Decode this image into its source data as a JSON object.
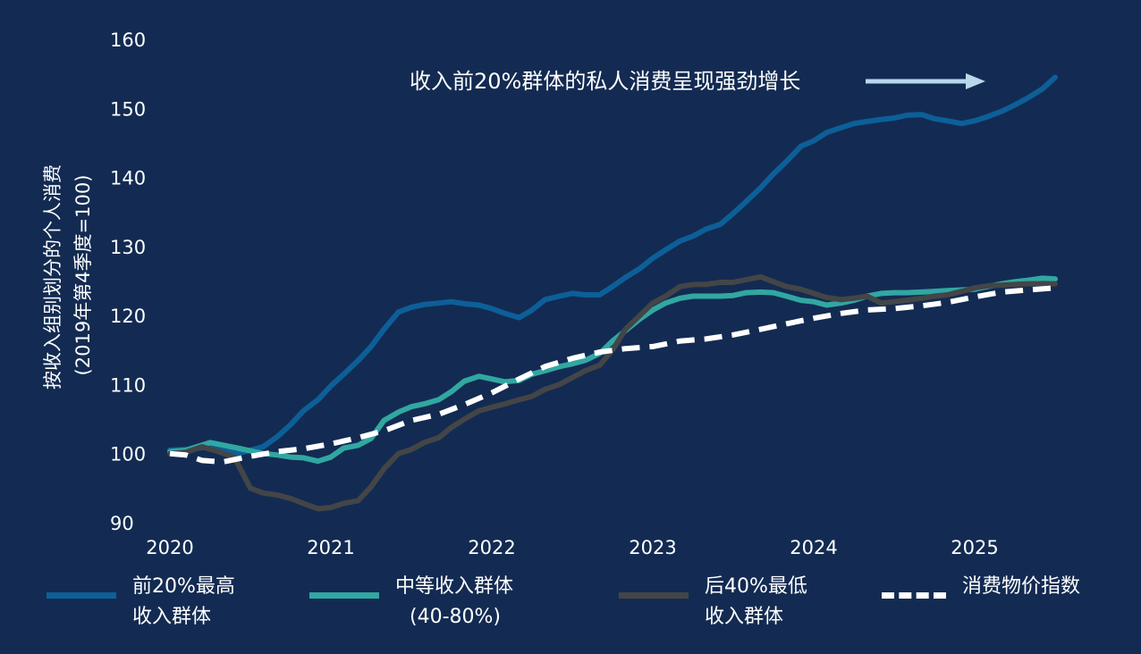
{
  "chart_data": {
    "type": "line",
    "ylabel_line1": "按收入组别划分的个人消费",
    "ylabel_line2": "(2019年第4季度=100)",
    "ylim": [
      90,
      160
    ],
    "yticks": [
      "90",
      "100",
      "110",
      "120",
      "130",
      "140",
      "150",
      "160"
    ],
    "xlim": [
      2020,
      2025.6
    ],
    "xticks": [
      "2020",
      "2021",
      "2022",
      "2023",
      "2024",
      "2025"
    ],
    "annotation": "收入前20%群体的私人消费呈现强劲增长",
    "colors": {
      "top20": "#0d5f98",
      "middle": "#31a7a2",
      "bottom40": "#434547",
      "cpi": "#ffffff",
      "arrow": "#b9d7ea"
    },
    "series": [
      {
        "key": "top20",
        "name_line1": "前20%最高",
        "name_line2": "收入群体",
        "x": [
          2020.0,
          2020.1,
          2020.25,
          2020.42,
          2020.58,
          2020.67,
          2020.75,
          2020.83,
          2020.92,
          2021.0,
          2021.08,
          2021.17,
          2021.25,
          2021.33,
          2021.42,
          2021.5,
          2021.58,
          2021.67,
          2021.75,
          2021.83,
          2021.92,
          2022.0,
          2022.08,
          2022.17,
          2022.25,
          2022.33,
          2022.42,
          2022.5,
          2022.58,
          2022.67,
          2022.75,
          2022.83,
          2022.92,
          2023.0,
          2023.08,
          2023.17,
          2023.25,
          2023.33,
          2023.42,
          2023.5,
          2023.58,
          2023.67,
          2023.75,
          2023.83,
          2023.92,
          2024.0,
          2024.08,
          2024.17,
          2024.25,
          2024.33,
          2024.42,
          2024.5,
          2024.58,
          2024.67,
          2024.75,
          2024.83,
          2024.92,
          2025.0,
          2025.08,
          2025.17,
          2025.25,
          2025.33,
          2025.42,
          2025.5
        ],
        "values": [
          100.5,
          100.6,
          101.0,
          100.0,
          101.0,
          102.5,
          104.2,
          106.2,
          107.8,
          109.8,
          111.5,
          113.5,
          115.5,
          118.0,
          120.5,
          121.2,
          121.6,
          121.8,
          122.0,
          121.7,
          121.5,
          121.0,
          120.3,
          119.7,
          120.8,
          122.3,
          122.8,
          123.2,
          123.0,
          123.0,
          124.2,
          125.5,
          126.8,
          128.3,
          129.5,
          130.8,
          131.5,
          132.5,
          133.2,
          134.8,
          136.5,
          138.5,
          140.5,
          142.3,
          144.5,
          145.3,
          146.5,
          147.2,
          147.8,
          148.1,
          148.4,
          148.6,
          149.0,
          149.1,
          148.5,
          148.2,
          147.8,
          148.2,
          148.8,
          149.6,
          150.5,
          151.5,
          152.8,
          154.5
        ]
      },
      {
        "key": "middle",
        "name_line1": "中等收入群体",
        "name_line2": "(40-80%)",
        "x": [
          2020.0,
          2020.1,
          2020.25,
          2020.42,
          2020.58,
          2020.67,
          2020.75,
          2020.83,
          2020.92,
          2021.0,
          2021.08,
          2021.17,
          2021.25,
          2021.33,
          2021.42,
          2021.5,
          2021.58,
          2021.67,
          2021.75,
          2021.83,
          2021.92,
          2022.0,
          2022.08,
          2022.17,
          2022.25,
          2022.33,
          2022.42,
          2022.5,
          2022.58,
          2022.67,
          2022.75,
          2022.83,
          2022.92,
          2023.0,
          2023.08,
          2023.17,
          2023.25,
          2023.33,
          2023.42,
          2023.5,
          2023.58,
          2023.67,
          2023.75,
          2023.83,
          2023.92,
          2024.0,
          2024.08,
          2024.17,
          2024.25,
          2024.33,
          2024.42,
          2024.5,
          2024.58,
          2024.67,
          2024.75,
          2024.83,
          2024.92,
          2025.0,
          2025.08,
          2025.17,
          2025.25,
          2025.33,
          2025.42,
          2025.5
        ],
        "values": [
          100.3,
          100.5,
          101.6,
          100.8,
          100.0,
          99.8,
          99.5,
          99.4,
          98.9,
          99.5,
          100.8,
          101.2,
          102.2,
          104.8,
          106.0,
          106.8,
          107.2,
          107.8,
          109.0,
          110.5,
          111.2,
          110.8,
          110.4,
          110.6,
          111.5,
          112.0,
          112.6,
          113.0,
          113.5,
          114.5,
          116.3,
          117.8,
          119.5,
          120.8,
          121.8,
          122.5,
          122.8,
          122.8,
          122.8,
          122.9,
          123.3,
          123.4,
          123.3,
          122.8,
          122.2,
          122.0,
          121.5,
          121.8,
          122.2,
          122.8,
          123.2,
          123.3,
          123.3,
          123.4,
          123.5,
          123.6,
          123.7,
          123.8,
          124.2,
          124.6,
          124.9,
          125.1,
          125.4,
          125.3
        ]
      },
      {
        "key": "bottom40",
        "name_line1": "后40%最低",
        "name_line2": "收入群体",
        "x": [
          2020.0,
          2020.1,
          2020.2,
          2020.3,
          2020.4,
          2020.5,
          2020.58,
          2020.67,
          2020.75,
          2020.83,
          2020.92,
          2021.0,
          2021.08,
          2021.17,
          2021.25,
          2021.33,
          2021.42,
          2021.5,
          2021.58,
          2021.67,
          2021.75,
          2021.83,
          2021.92,
          2022.0,
          2022.08,
          2022.17,
          2022.25,
          2022.33,
          2022.42,
          2022.5,
          2022.58,
          2022.67,
          2022.75,
          2022.83,
          2022.92,
          2023.0,
          2023.08,
          2023.17,
          2023.25,
          2023.33,
          2023.42,
          2023.5,
          2023.58,
          2023.67,
          2023.75,
          2023.83,
          2023.92,
          2024.0,
          2024.08,
          2024.17,
          2024.25,
          2024.33,
          2024.42,
          2024.5,
          2024.58,
          2024.67,
          2024.75,
          2024.83,
          2024.92,
          2025.0,
          2025.08,
          2025.17,
          2025.25,
          2025.33,
          2025.42,
          2025.5
        ],
        "values": [
          100.0,
          100.2,
          101.0,
          100.3,
          99.5,
          95.0,
          94.3,
          94.0,
          93.5,
          92.8,
          92.0,
          92.2,
          92.8,
          93.2,
          95.2,
          97.8,
          100.0,
          100.6,
          101.6,
          102.3,
          103.8,
          105.0,
          106.2,
          106.7,
          107.2,
          107.8,
          108.3,
          109.3,
          110.0,
          111.0,
          112.0,
          112.8,
          115.0,
          118.0,
          120.0,
          121.8,
          122.8,
          124.2,
          124.5,
          124.5,
          124.8,
          124.8,
          125.2,
          125.6,
          124.9,
          124.2,
          123.8,
          123.2,
          122.6,
          122.3,
          122.5,
          122.8,
          121.8,
          122.0,
          122.2,
          122.5,
          122.8,
          123.0,
          123.5,
          124.0,
          124.3,
          124.4,
          124.5,
          124.6,
          124.6,
          124.6
        ]
      },
      {
        "key": "cpi",
        "name_line1": "消费物价指数",
        "name_line2": "",
        "x": [
          2020.0,
          2020.1,
          2020.2,
          2020.33,
          2020.5,
          2020.67,
          2020.83,
          2021.0,
          2021.17,
          2021.33,
          2021.5,
          2021.67,
          2021.83,
          2022.0,
          2022.17,
          2022.33,
          2022.5,
          2022.67,
          2022.83,
          2023.0,
          2023.17,
          2023.33,
          2023.5,
          2023.67,
          2023.83,
          2024.0,
          2024.17,
          2024.33,
          2024.5,
          2024.67,
          2024.83,
          2025.0,
          2025.17,
          2025.33,
          2025.5
        ],
        "values": [
          100.0,
          99.8,
          99.0,
          98.8,
          99.6,
          100.3,
          100.7,
          101.4,
          102.3,
          103.3,
          104.8,
          105.7,
          107.1,
          108.8,
          110.8,
          112.6,
          113.8,
          114.7,
          115.2,
          115.5,
          116.3,
          116.6,
          117.2,
          118.0,
          118.8,
          119.6,
          120.3,
          120.8,
          121.0,
          121.4,
          121.9,
          122.7,
          123.4,
          123.7,
          124.0
        ]
      }
    ]
  }
}
